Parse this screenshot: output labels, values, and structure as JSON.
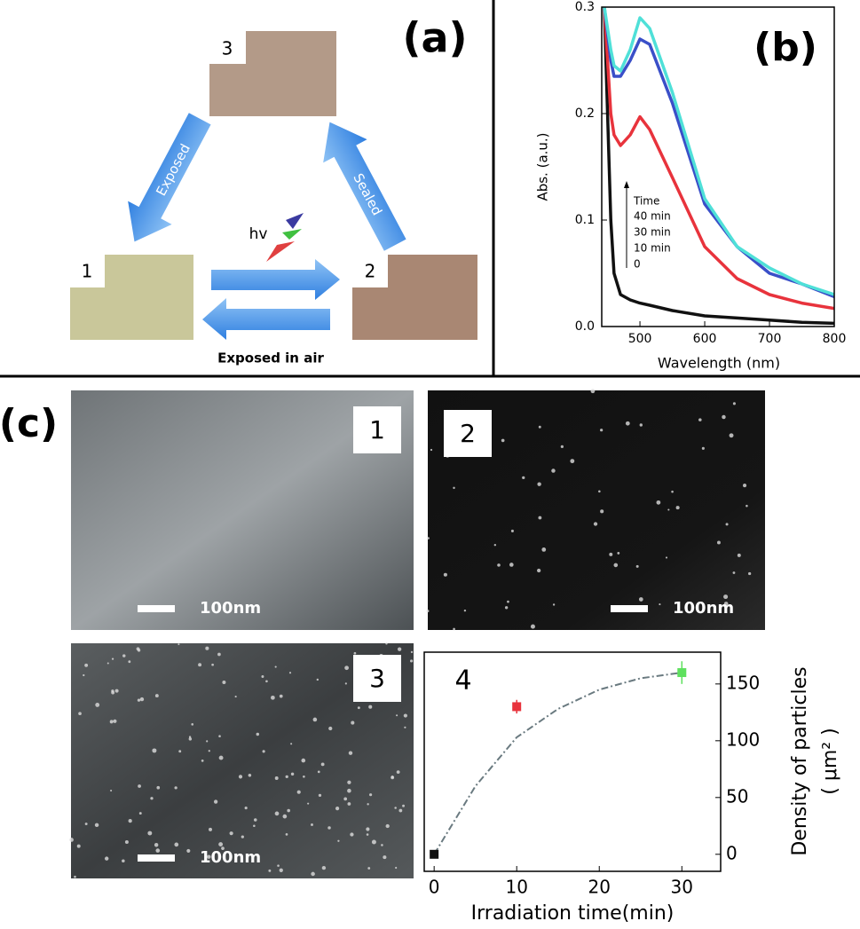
{
  "panel_a": {
    "label": "(a)",
    "samples": [
      {
        "label": "1"
      },
      {
        "label": "2"
      },
      {
        "label": "3"
      }
    ],
    "arrow_exposed": "Exposed",
    "arrow_sealed": "Sealed",
    "light": "hv",
    "air": "Exposed in air"
  },
  "panel_c": {
    "label": "(c)",
    "images": [
      {
        "label": "1",
        "scale": "100nm"
      },
      {
        "label": "2",
        "scale": "100nm"
      },
      {
        "label": "3",
        "scale": "100nm"
      }
    ]
  },
  "chart_data": [
    {
      "type": "line",
      "label": "(b)",
      "xlabel": "Wavelength (nm)",
      "ylabel": "Abs. (a.u.)",
      "x": [
        445,
        455,
        460,
        470,
        485,
        500,
        515,
        550,
        600,
        650,
        700,
        750,
        800
      ],
      "legend_title": "Time",
      "series": [
        {
          "name": "40 min",
          "color": "#4fe0d8",
          "values": [
            0.3,
            0.26,
            0.245,
            0.24,
            0.26,
            0.29,
            0.28,
            0.22,
            0.12,
            0.075,
            0.055,
            0.04,
            0.03
          ]
        },
        {
          "name": "30 min",
          "color": "#3a4fc8",
          "values": [
            0.3,
            0.25,
            0.235,
            0.235,
            0.25,
            0.27,
            0.265,
            0.21,
            0.115,
            0.075,
            0.05,
            0.04,
            0.028
          ]
        },
        {
          "name": "10 min",
          "color": "#e8333c",
          "values": [
            0.3,
            0.2,
            0.18,
            0.17,
            0.18,
            0.197,
            0.185,
            0.14,
            0.075,
            0.045,
            0.03,
            0.022,
            0.017
          ]
        },
        {
          "name": "0",
          "color": "#111111",
          "values": [
            0.3,
            0.1,
            0.05,
            0.03,
            0.025,
            0.022,
            0.02,
            0.015,
            0.01,
            0.008,
            0.006,
            0.004,
            0.003
          ]
        }
      ],
      "xlim": [
        441,
        800
      ],
      "xticks": [
        500,
        600,
        700,
        800
      ],
      "ylim": [
        0,
        0.3
      ],
      "yticks": [
        {
          "value": 0,
          "label": "0.0"
        },
        0.1,
        0.2,
        0.3
      ]
    },
    {
      "type": "scatter",
      "label": "4",
      "xlabel": "Irradiation time(min)",
      "ylabel": [
        "Density of particles",
        "( μm² )"
      ],
      "x": [
        0,
        10,
        30
      ],
      "values": [
        0,
        130,
        160
      ],
      "errors": [
        2,
        6,
        10
      ],
      "colors": [
        "#111111",
        "#e8333c",
        "#5ee05e"
      ],
      "fit": {
        "x": [
          0,
          5,
          10,
          15,
          20,
          25,
          30
        ],
        "values": [
          0,
          60,
          103,
          128,
          145,
          155,
          160
        ],
        "color": "#6a7a80"
      },
      "xlim": [
        -1.2,
        34.7
      ],
      "xticks": [
        0,
        10,
        20,
        30
      ],
      "ylim": [
        -15,
        178
      ],
      "yticks": [
        0,
        50,
        100,
        150
      ]
    }
  ]
}
